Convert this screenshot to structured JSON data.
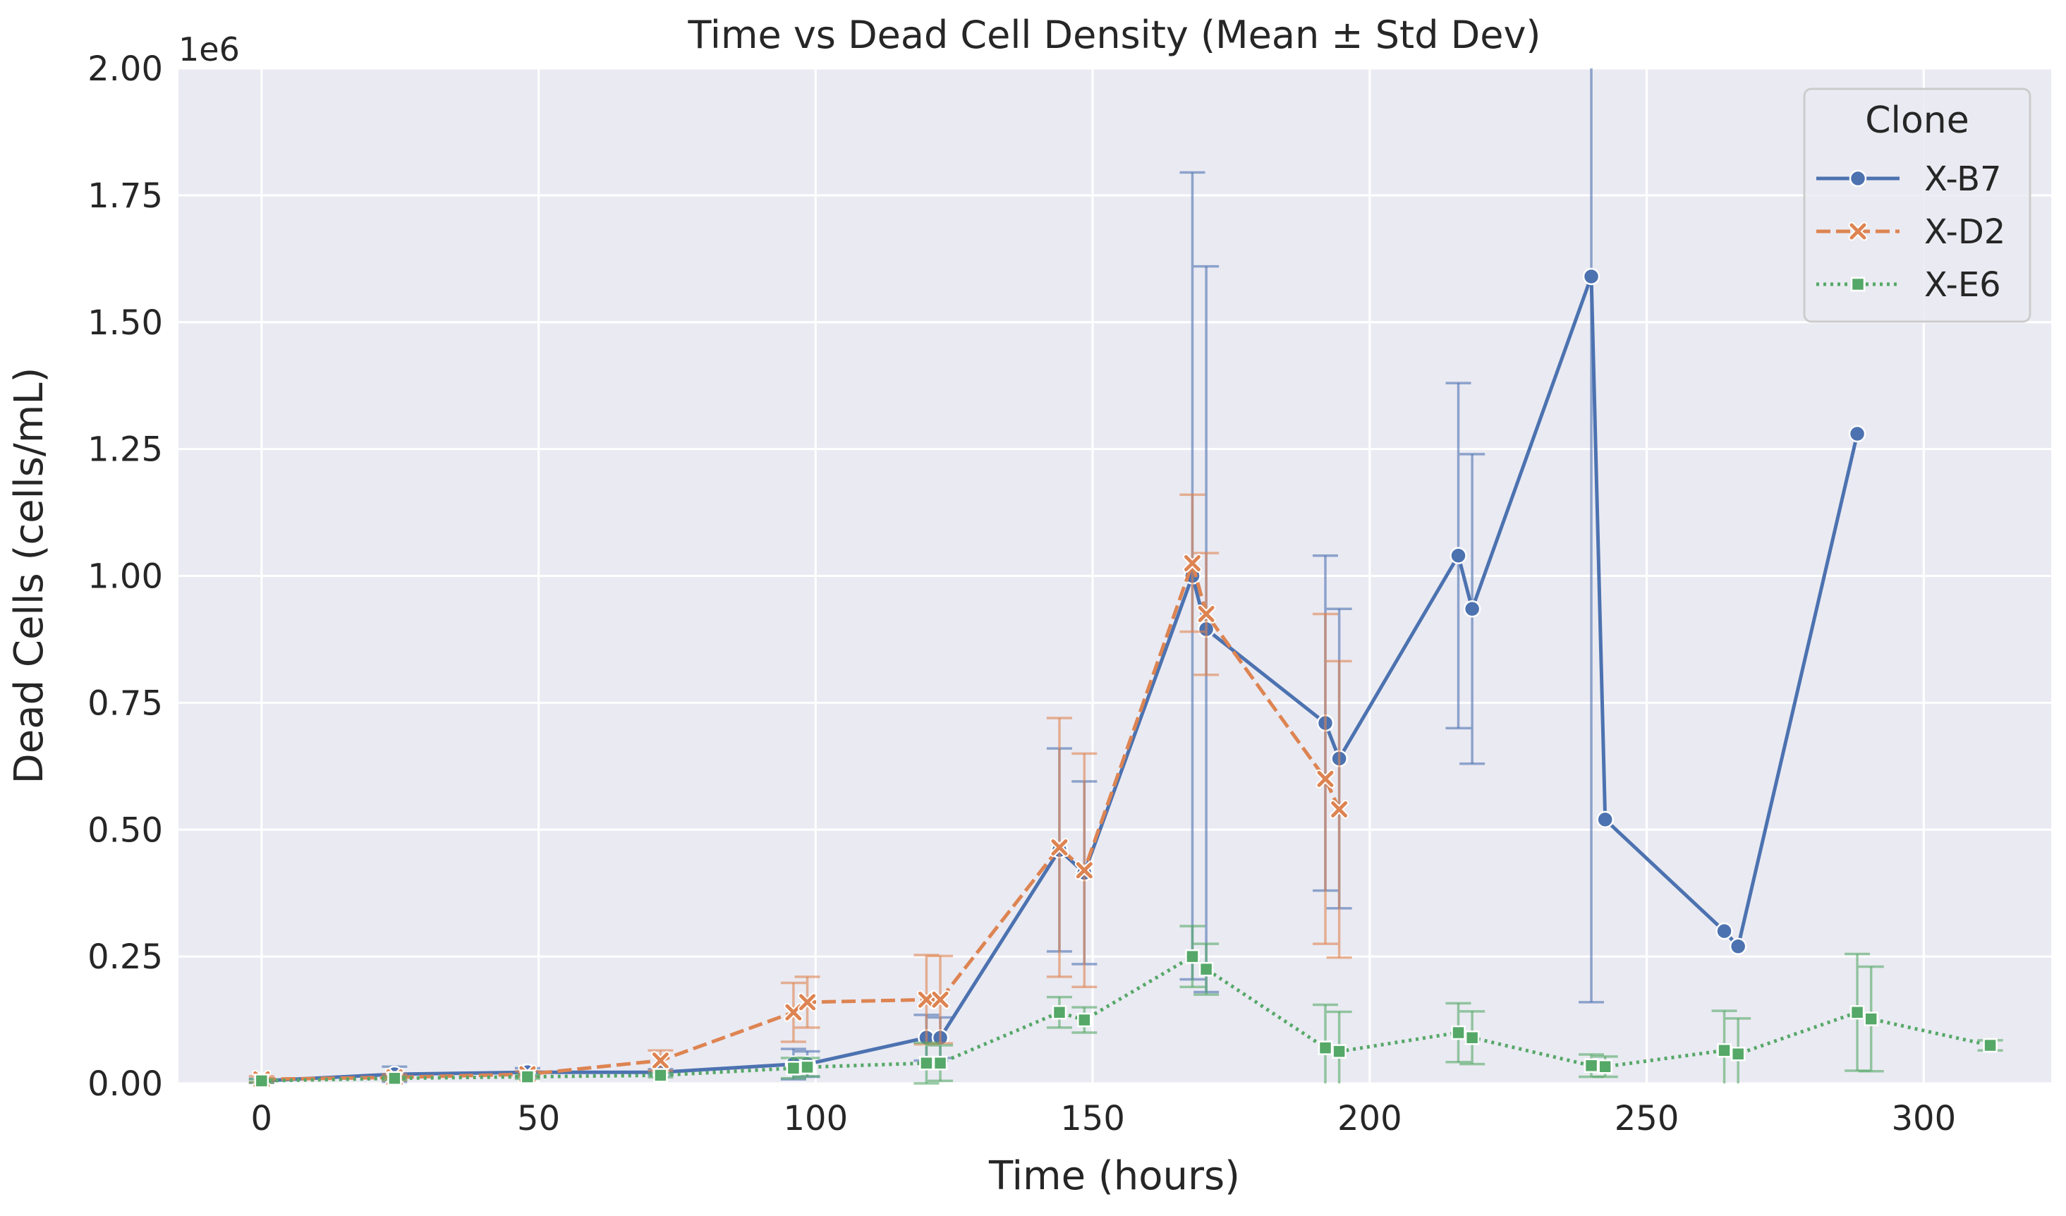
{
  "chart_data": {
    "type": "line",
    "title": "Time vs Dead Cell Density (Mean ± Std Dev)",
    "xlabel": "Time (hours)",
    "ylabel": "Dead Cells (cells/mL)",
    "y_offset_label": "1e6",
    "xlim": [
      -15,
      323
    ],
    "ylim": [
      0,
      2.0
    ],
    "x_ticks": [
      0,
      50,
      100,
      150,
      200,
      250,
      300
    ],
    "x_tick_labels": [
      "0",
      "50",
      "100",
      "150",
      "200",
      "250",
      "300"
    ],
    "y_ticks": [
      0,
      0.25,
      0.5,
      0.75,
      1.0,
      1.25,
      1.5,
      1.75,
      2.0
    ],
    "y_tick_labels": [
      "0.00",
      "0.25",
      "0.50",
      "0.75",
      "1.00",
      "1.25",
      "1.50",
      "1.75",
      "2.00"
    ],
    "grid": true,
    "legend": {
      "title": "Clone",
      "placement": "top-right"
    },
    "series": [
      {
        "name": "X-B7",
        "color": "#4c72b0",
        "marker": "circle",
        "dash": "solid",
        "points": [
          {
            "x": 0,
            "y": 0.005,
            "err": 0.004
          },
          {
            "x": 24,
            "y": 0.018,
            "err": 0.015
          },
          {
            "x": 48,
            "y": 0.022,
            "err": 0.008
          },
          {
            "x": 72,
            "y": 0.022,
            "err": 0.006
          },
          {
            "x": 96,
            "y": 0.038,
            "err": 0.03
          },
          {
            "x": 98.5,
            "y": 0.038,
            "err": 0.025
          },
          {
            "x": 120,
            "y": 0.09,
            "err": 0.045
          },
          {
            "x": 122.5,
            "y": 0.09,
            "err": 0.04
          },
          {
            "x": 144,
            "y": 0.46,
            "err": 0.2
          },
          {
            "x": 148.5,
            "y": 0.415,
            "err": 0.18
          },
          {
            "x": 168,
            "y": 1.0,
            "err": 0.795
          },
          {
            "x": 170.5,
            "y": 0.895,
            "err": 0.715
          },
          {
            "x": 192,
            "y": 0.71,
            "err": 0.33
          },
          {
            "x": 194.5,
            "y": 0.64,
            "err": 0.295
          },
          {
            "x": 216,
            "y": 1.04,
            "err": 0.34
          },
          {
            "x": 218.5,
            "y": 0.935,
            "err": 0.305
          },
          {
            "x": 240,
            "y": 1.59,
            "err": 1.43
          },
          {
            "x": 242.5,
            "y": 0.52,
            "err": null
          },
          {
            "x": 264,
            "y": 0.3,
            "err": null
          },
          {
            "x": 266.5,
            "y": 0.27,
            "err": null
          },
          {
            "x": 288,
            "y": 1.28,
            "err": null
          }
        ]
      },
      {
        "name": "X-D2",
        "color": "#dd8452",
        "marker": "x",
        "dash": "dashed",
        "points": [
          {
            "x": 0,
            "y": 0.008,
            "err": 0.006
          },
          {
            "x": 24,
            "y": 0.012,
            "err": 0.006
          },
          {
            "x": 48,
            "y": 0.018,
            "err": 0.006
          },
          {
            "x": 72,
            "y": 0.045,
            "err": 0.02
          },
          {
            "x": 96,
            "y": 0.14,
            "err": 0.058
          },
          {
            "x": 98.5,
            "y": 0.16,
            "err": 0.05
          },
          {
            "x": 120,
            "y": 0.165,
            "err": 0.088
          },
          {
            "x": 122.5,
            "y": 0.165,
            "err": 0.086
          },
          {
            "x": 144,
            "y": 0.465,
            "err": 0.255
          },
          {
            "x": 148.5,
            "y": 0.42,
            "err": 0.23
          },
          {
            "x": 168,
            "y": 1.025,
            "err": 0.135
          },
          {
            "x": 170.5,
            "y": 0.925,
            "err": 0.12
          },
          {
            "x": 192,
            "y": 0.6,
            "err": 0.325
          },
          {
            "x": 194.5,
            "y": 0.54,
            "err": 0.292
          }
        ]
      },
      {
        "name": "X-E6",
        "color": "#55a868",
        "marker": "square",
        "dash": "dotted",
        "points": [
          {
            "x": 0,
            "y": 0.005,
            "err": 0.003
          },
          {
            "x": 24,
            "y": 0.01,
            "err": 0.003
          },
          {
            "x": 48,
            "y": 0.013,
            "err": 0.004
          },
          {
            "x": 72,
            "y": 0.016,
            "err": 0.004
          },
          {
            "x": 96,
            "y": 0.03,
            "err": 0.02
          },
          {
            "x": 98.5,
            "y": 0.032,
            "err": 0.018
          },
          {
            "x": 120,
            "y": 0.04,
            "err": 0.04
          },
          {
            "x": 122.5,
            "y": 0.04,
            "err": 0.035
          },
          {
            "x": 144,
            "y": 0.14,
            "err": 0.03
          },
          {
            "x": 148.5,
            "y": 0.125,
            "err": 0.025
          },
          {
            "x": 168,
            "y": 0.25,
            "err": 0.06
          },
          {
            "x": 170.5,
            "y": 0.225,
            "err": 0.05
          },
          {
            "x": 192,
            "y": 0.07,
            "err": 0.085
          },
          {
            "x": 194.5,
            "y": 0.063,
            "err": 0.078
          },
          {
            "x": 216,
            "y": 0.1,
            "err": 0.058
          },
          {
            "x": 218.5,
            "y": 0.09,
            "err": 0.052
          },
          {
            "x": 240,
            "y": 0.035,
            "err": 0.022
          },
          {
            "x": 242.5,
            "y": 0.033,
            "err": 0.02
          },
          {
            "x": 264,
            "y": 0.065,
            "err": 0.078
          },
          {
            "x": 266.5,
            "y": 0.058,
            "err": 0.07
          },
          {
            "x": 288,
            "y": 0.14,
            "err": 0.115
          },
          {
            "x": 290.5,
            "y": 0.127,
            "err": 0.103
          },
          {
            "x": 312,
            "y": 0.075,
            "err": 0.01
          }
        ]
      }
    ]
  }
}
